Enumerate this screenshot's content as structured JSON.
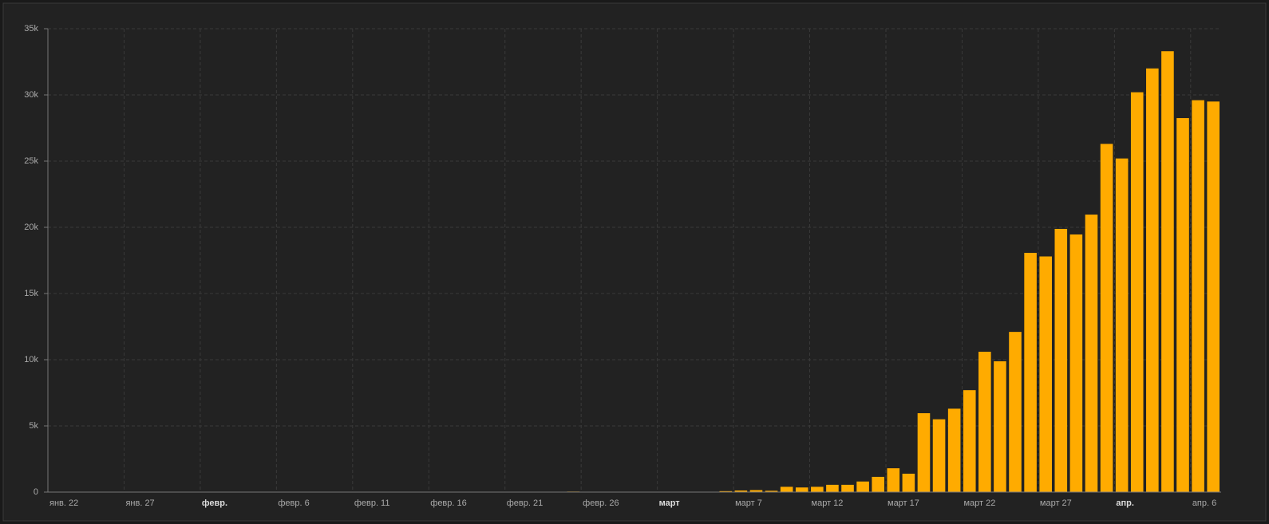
{
  "chart_data": {
    "type": "bar",
    "categories": [
      "янв. 22",
      null,
      null,
      null,
      null,
      "янв. 27",
      null,
      null,
      null,
      null,
      "февр.",
      null,
      null,
      null,
      null,
      "февр. 6",
      null,
      null,
      null,
      null,
      "февр. 11",
      null,
      null,
      null,
      null,
      "февр. 16",
      null,
      null,
      null,
      null,
      "февр. 21",
      null,
      null,
      null,
      null,
      "февр. 26",
      null,
      null,
      null,
      null,
      "март",
      null,
      null,
      null,
      null,
      "март 7",
      null,
      null,
      null,
      null,
      "март 12",
      null,
      null,
      null,
      null,
      "март 17",
      null,
      null,
      null,
      null,
      "март 22",
      null,
      null,
      null,
      null,
      "март 27",
      null,
      null,
      null,
      null,
      "апр.",
      null,
      null,
      null,
      null,
      "апр. 6",
      null
    ],
    "values": [
      1,
      0,
      1,
      0,
      3,
      0,
      0,
      1,
      0,
      2,
      1,
      0,
      3,
      0,
      0,
      0,
      0,
      0,
      0,
      1,
      0,
      1,
      0,
      0,
      0,
      0,
      0,
      0,
      0,
      0,
      0,
      2,
      0,
      0,
      40,
      0,
      0,
      6,
      1,
      6,
      3,
      20,
      15,
      30,
      70,
      120,
      150,
      100,
      400,
      350,
      400,
      550,
      550,
      800,
      1150,
      1800,
      1390,
      5960,
      5500,
      6300,
      7700,
      10600,
      9880,
      12100,
      18070,
      17800,
      19880,
      19460,
      20960,
      26300,
      25200,
      30200,
      32000,
      33300,
      28250,
      29600,
      29500
    ],
    "color": "#ffab00",
    "ylim": [
      0,
      35000
    ],
    "yticks": [
      0,
      {
        "value": 5000,
        "label": "5k"
      },
      {
        "value": 10000,
        "label": "10k"
      },
      {
        "value": 15000,
        "label": "15k"
      },
      {
        "value": 20000,
        "label": "20k"
      },
      {
        "value": 25000,
        "label": "25k"
      },
      {
        "value": 30000,
        "label": "30k"
      },
      {
        "value": 35000,
        "label": "35k"
      }
    ],
    "grid": true
  }
}
